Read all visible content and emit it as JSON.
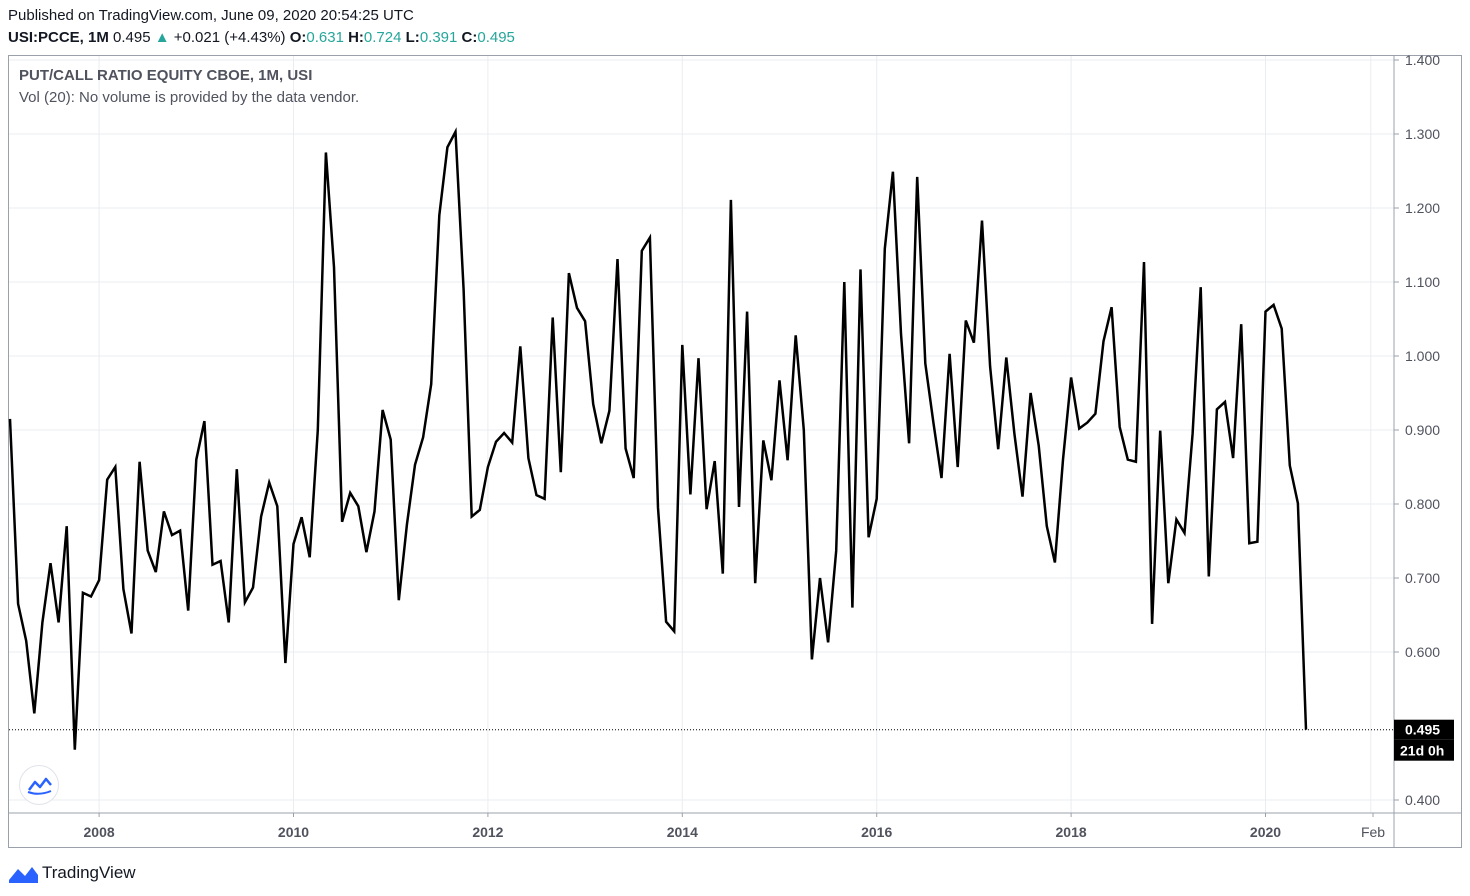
{
  "header": {
    "published": "Published on TradingView.com, June 09, 2020 20:54:25 UTC",
    "symbol": "USI:PCCE, 1M",
    "last": "0.495",
    "change_arrow": "▲",
    "change": "+0.021 (+4.43%)",
    "o_label": "O:",
    "o_value": "0.631",
    "h_label": "H:",
    "h_value": "0.724",
    "l_label": "L:",
    "l_value": "0.391",
    "c_label": "C:",
    "c_value": "0.495"
  },
  "legend": {
    "title": "PUT/CALL RATIO EQUITY CBOE, 1M, USI",
    "volume_note": "Vol (20): No volume is provided by the data vendor."
  },
  "footer": {
    "brand": "TradingView"
  },
  "price_label": "0.495",
  "countdown_label": "21d 0h",
  "colors": {
    "line": "#000000",
    "grid": "#e9ecf1",
    "up": "#26a69a",
    "axis_text": "#50535e",
    "label_bg": "#000000"
  },
  "chart_data": {
    "type": "line",
    "title": "PUT/CALL RATIO EQUITY CBOE, 1M, USI",
    "xlabel": "",
    "ylabel": "",
    "ylim": [
      0.4,
      1.4
    ],
    "grid": true,
    "x_ticks": [
      "2008",
      "2010",
      "2012",
      "2014",
      "2016",
      "2018",
      "2020",
      "Feb"
    ],
    "y_ticks": [
      "0.400",
      "0.600",
      "0.700",
      "0.800",
      "0.900",
      "1.000",
      "1.100",
      "1.200",
      "1.300",
      "1.400"
    ],
    "x_start": "2007-02",
    "x": [
      "2007-02",
      "2007-03",
      "2007-04",
      "2007-05",
      "2007-06",
      "2007-07",
      "2007-08",
      "2007-09",
      "2007-10",
      "2007-11",
      "2007-12",
      "2008-01",
      "2008-02",
      "2008-03",
      "2008-04",
      "2008-05",
      "2008-06",
      "2008-07",
      "2008-08",
      "2008-09",
      "2008-10",
      "2008-11",
      "2008-12",
      "2009-01",
      "2009-02",
      "2009-03",
      "2009-04",
      "2009-05",
      "2009-06",
      "2009-07",
      "2009-08",
      "2009-09",
      "2009-10",
      "2009-11",
      "2009-12",
      "2010-01",
      "2010-02",
      "2010-03",
      "2010-04",
      "2010-05",
      "2010-06",
      "2010-07",
      "2010-08",
      "2010-09",
      "2010-10",
      "2010-11",
      "2010-12",
      "2011-01",
      "2011-02",
      "2011-03",
      "2011-04",
      "2011-05",
      "2011-06",
      "2011-07",
      "2011-08",
      "2011-09",
      "2011-10",
      "2011-11",
      "2011-12",
      "2012-01",
      "2012-02",
      "2012-03",
      "2012-04",
      "2012-05",
      "2012-06",
      "2012-07",
      "2012-08",
      "2012-09",
      "2012-10",
      "2012-11",
      "2012-12",
      "2013-01",
      "2013-02",
      "2013-03",
      "2013-04",
      "2013-05",
      "2013-06",
      "2013-07",
      "2013-08",
      "2013-09",
      "2013-10",
      "2013-11",
      "2013-12",
      "2014-01",
      "2014-02",
      "2014-03",
      "2014-04",
      "2014-05",
      "2014-06",
      "2014-07",
      "2014-08",
      "2014-09",
      "2014-10",
      "2014-11",
      "2014-12",
      "2015-01",
      "2015-02",
      "2015-03",
      "2015-04",
      "2015-05",
      "2015-06",
      "2015-07",
      "2015-08",
      "2015-09",
      "2015-10",
      "2015-11",
      "2015-12",
      "2016-01",
      "2016-02",
      "2016-03",
      "2016-04",
      "2016-05",
      "2016-06",
      "2016-07",
      "2016-08",
      "2016-09",
      "2016-10",
      "2016-11",
      "2016-12",
      "2017-01",
      "2017-02",
      "2017-03",
      "2017-04",
      "2017-05",
      "2017-06",
      "2017-07",
      "2017-08",
      "2017-09",
      "2017-10",
      "2017-11",
      "2017-12",
      "2018-01",
      "2018-02",
      "2018-03",
      "2018-04",
      "2018-05",
      "2018-06",
      "2018-07",
      "2018-08",
      "2018-09",
      "2018-10",
      "2018-11",
      "2018-12",
      "2019-01",
      "2019-02",
      "2019-03",
      "2019-04",
      "2019-05",
      "2019-06",
      "2019-07",
      "2019-08",
      "2019-09",
      "2019-10",
      "2019-11",
      "2019-12",
      "2020-01",
      "2020-02",
      "2020-03",
      "2020-04",
      "2020-05",
      "2020-06"
    ],
    "values": [
      0.915,
      0.665,
      0.615,
      0.517,
      0.64,
      0.72,
      0.64,
      0.77,
      0.468,
      0.68,
      0.675,
      0.697,
      0.833,
      0.85,
      0.685,
      0.625,
      0.857,
      0.737,
      0.708,
      0.79,
      0.758,
      0.764,
      0.656,
      0.86,
      0.912,
      0.718,
      0.723,
      0.64,
      0.847,
      0.667,
      0.687,
      0.783,
      0.829,
      0.797,
      0.585,
      0.746,
      0.782,
      0.728,
      0.9,
      1.275,
      1.12,
      0.776,
      0.815,
      0.797,
      0.735,
      0.79,
      0.927,
      0.887,
      0.67,
      0.772,
      0.853,
      0.89,
      0.962,
      1.19,
      1.282,
      1.303,
      1.09,
      0.783,
      0.792,
      0.85,
      0.884,
      0.896,
      0.883,
      1.013,
      0.862,
      0.812,
      0.807,
      1.052,
      0.843,
      1.112,
      1.065,
      1.047,
      0.935,
      0.882,
      0.926,
      1.131,
      0.875,
      0.835,
      1.142,
      1.16,
      0.795,
      0.641,
      0.628,
      1.015,
      0.813,
      0.997,
      0.793,
      0.858,
      0.706,
      1.211,
      0.796,
      1.06,
      0.693,
      0.886,
      0.832,
      0.967,
      0.859,
      1.028,
      0.9,
      0.59,
      0.7,
      0.613,
      0.737,
      1.1,
      0.66,
      1.117,
      0.755,
      0.807,
      1.145,
      1.249,
      1.03,
      0.882,
      1.242,
      0.99,
      0.91,
      0.835,
      1.003,
      0.85,
      1.048,
      1.018,
      1.183,
      0.986,
      0.874,
      0.998,
      0.895,
      0.81,
      0.95,
      0.879,
      0.77,
      0.721,
      0.86,
      0.971,
      0.902,
      0.91,
      0.922,
      1.02,
      1.066,
      0.904,
      0.86,
      0.857,
      1.127,
      0.638,
      0.899,
      0.693,
      0.779,
      0.761,
      0.895,
      1.093,
      0.702,
      0.928,
      0.938,
      0.862,
      1.043,
      0.747,
      0.749,
      1.06,
      1.069,
      1.037,
      0.852,
      0.801,
      0.495
    ],
    "last_value": 0.495
  }
}
